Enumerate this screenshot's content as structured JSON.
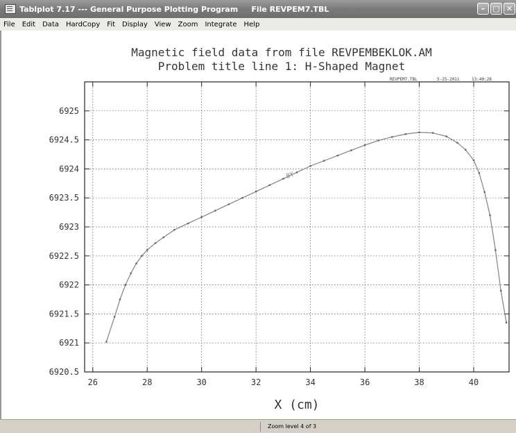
{
  "window": {
    "title": "Tablplot 7.17 --- General Purpose Plotting Program     File REVPEM7.TBL",
    "controls": {
      "minimize": "–",
      "maximize": "□",
      "close": "✕"
    }
  },
  "menu": [
    {
      "label": "File"
    },
    {
      "label": "Edit"
    },
    {
      "label": "Data"
    },
    {
      "label": "HardCopy"
    },
    {
      "label": "Fit"
    },
    {
      "label": "Display"
    },
    {
      "label": "View"
    },
    {
      "label": "Zoom"
    },
    {
      "label": "Integrate"
    },
    {
      "label": "Help"
    }
  ],
  "status": {
    "text": "Zoom level 4 of 3"
  },
  "chart_data": {
    "type": "line",
    "title": "Magnetic field data from file REVPEMBEKLOK.AM",
    "subtitle": "Problem title line 1: H-Shaped Magnet",
    "header_info": {
      "file": "REVPEM7.TBL",
      "date": "5-25-2011",
      "time": "13:40:28"
    },
    "xlabel": "X (cm)",
    "ylabel": "",
    "xlim": [
      25.7,
      41.3
    ],
    "ylim": [
      6920.5,
      6925.5
    ],
    "xticks": [
      26,
      28,
      30,
      32,
      34,
      36,
      38,
      40
    ],
    "xtick_labels": [
      "26",
      "28",
      "30",
      "32",
      "34",
      "36",
      "38",
      "40"
    ],
    "yticks": [
      6920.5,
      6921,
      6921.5,
      6922,
      6922.5,
      6923,
      6923.5,
      6924,
      6924.5,
      6925
    ],
    "ytick_labels": [
      "6920.5",
      "6921",
      "6921.5",
      "6922",
      "6922.5",
      "6923",
      "6923.5",
      "6924",
      "6924.5",
      "6925"
    ],
    "grid": true,
    "series": [
      {
        "name": "BY",
        "x": [
          26.5,
          26.8,
          27.0,
          27.2,
          27.4,
          27.6,
          27.8,
          28.0,
          28.3,
          28.6,
          29.0,
          29.5,
          30.0,
          30.5,
          31.0,
          31.5,
          32.0,
          32.5,
          33.0,
          33.5,
          34.0,
          34.5,
          35.0,
          35.5,
          36.0,
          36.5,
          37.0,
          37.5,
          38.0,
          38.5,
          39.0,
          39.4,
          39.7,
          40.0,
          40.2,
          40.4,
          40.6,
          40.8,
          41.0,
          41.2
        ],
        "y": [
          6921.02,
          6921.45,
          6921.75,
          6922.0,
          6922.2,
          6922.37,
          6922.5,
          6922.6,
          6922.72,
          6922.82,
          6922.95,
          6923.06,
          6923.17,
          6923.28,
          6923.39,
          6923.5,
          6923.61,
          6923.72,
          6923.83,
          6923.94,
          6924.05,
          6924.14,
          6924.23,
          6924.32,
          6924.41,
          6924.49,
          6924.55,
          6924.6,
          6924.63,
          6924.62,
          6924.56,
          6924.45,
          6924.33,
          6924.15,
          6923.93,
          6923.6,
          6923.2,
          6922.6,
          6921.9,
          6921.35
        ]
      }
    ]
  }
}
